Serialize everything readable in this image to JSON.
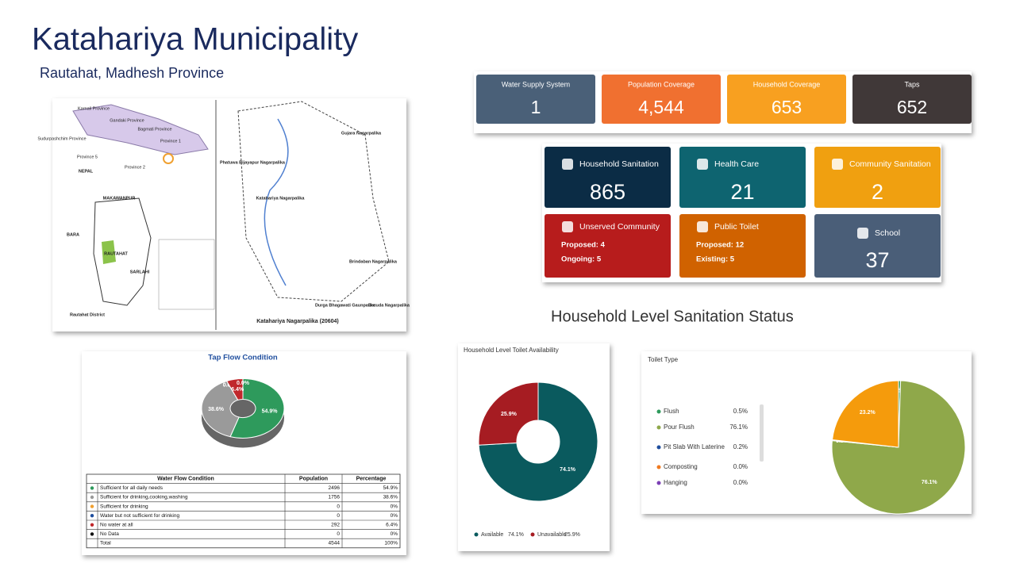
{
  "header": {
    "title": "Katahariya Municipality",
    "subtitle": "Rautahat, Madhesh Province"
  },
  "map": {
    "labels": [
      "Karnali Province",
      "Gandaki Province",
      "Bagmati Province",
      "Province 1",
      "Sudurpashchim Province",
      "Province 5",
      "Province 2",
      "NEPAL",
      "MAKAWANPUR",
      "BARA",
      "RAUTAHAT",
      "SARLAHI",
      "Rautahat District",
      "Phatuwa Bijayapur Nagarpalika",
      "Gujara Nagarpalika",
      "Katahariya Nagarpalika",
      "Brindaban Nagarpalika",
      "Garuda Nagarpalika",
      "Durga Bhagawati Gaunpalika",
      "Katahariya Nagarpalika (20604)"
    ]
  },
  "water_cards": [
    {
      "label": "Water Supply System",
      "value": "1"
    },
    {
      "label": "Population Coverage",
      "value": "4,544"
    },
    {
      "label": "Household Coverage",
      "value": "653"
    },
    {
      "label": "Taps",
      "value": "652"
    }
  ],
  "sanitation_cards": [
    {
      "label": "Household Sanitation",
      "value": "865"
    },
    {
      "label": "Health Care",
      "value": "21"
    },
    {
      "label": "Community Sanitation",
      "value": "2"
    },
    {
      "label": "Unserved Community",
      "lines": [
        "Proposed: 4",
        "Ongoing: 5"
      ]
    },
    {
      "label": "Public Toilet",
      "lines": [
        "Proposed: 12",
        "Existing: 5"
      ]
    },
    {
      "label": "School",
      "value": "37"
    }
  ],
  "section_title": "Household Level Sanitation Status",
  "chart_data": [
    {
      "type": "pie",
      "title": "Tap Flow Condition",
      "categories": [
        "Sufficient for all daily needs",
        "Sufficient for drinking,cooking,washing",
        "Sufficient for drinking",
        "Water but not sufficient for drinking",
        "No water at all",
        "No Data"
      ],
      "values": [
        54.9,
        38.6,
        0,
        0,
        6.4,
        0
      ],
      "value_labels": [
        "54.9%",
        "38.6%",
        "0.0%",
        "0.0%",
        "6.4%",
        "0.0%"
      ],
      "colors": [
        "#2e9a5c",
        "#9a9a9a",
        "#f0a030",
        "#1f4e9e",
        "#c0282c",
        "#111111"
      ]
    },
    {
      "type": "pie",
      "title": "Household Level Toilet Availability",
      "categories": [
        "Available",
        "Unavailable"
      ],
      "values": [
        74.1,
        25.9
      ],
      "value_labels": [
        "74.1%",
        "25.9%"
      ],
      "colors": [
        "#0a5a5e",
        "#a61c22"
      ],
      "legend": "bottom"
    },
    {
      "type": "pie",
      "title": "Toilet Type",
      "categories": [
        "Flush",
        "Pour Flush",
        "Pit Slab With Laterine",
        "Composting",
        "Hanging",
        null
      ],
      "values": [
        0.5,
        76.1,
        0.2,
        0.0,
        0.0,
        23.2
      ],
      "value_labels": [
        "0.5%",
        "76.1%",
        "0.2%",
        "0.0%",
        "0.0%",
        "23.2%"
      ],
      "colors": [
        "#2e9a5c",
        "#8fa84a",
        "#1f4e9e",
        "#f07a20",
        "#7b3fb5",
        "#f59b0c"
      ],
      "legend": "left"
    }
  ],
  "tap_table": {
    "columns": [
      "Water Flow Condition",
      "Population",
      "Percentage"
    ],
    "rows": [
      [
        "Sufficient for all daily needs",
        "2496",
        "54.9%"
      ],
      [
        "Sufficient for drinking,cooking,washing",
        "1756",
        "38.6%"
      ],
      [
        "Sufficient for drinking",
        "0",
        "0%"
      ],
      [
        "Water but not sufficient for drinking",
        "0",
        "0%"
      ],
      [
        "No water at all",
        "292",
        "6.4%"
      ],
      [
        "No Data",
        "0",
        "0%"
      ],
      [
        "Total",
        "4544",
        "100%"
      ]
    ]
  }
}
